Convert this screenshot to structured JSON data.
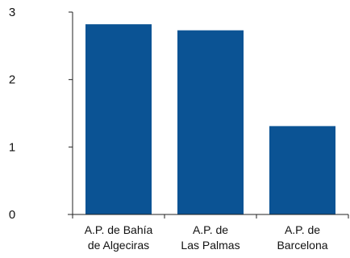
{
  "chart_data": {
    "type": "bar",
    "categories": [
      [
        "A.P. de Bahía",
        "de Algeciras"
      ],
      [
        "A.P. de",
        "Las Palmas"
      ],
      [
        "A.P. de",
        "Barcelona"
      ]
    ],
    "values": [
      2.82,
      2.73,
      1.31
    ],
    "title": "",
    "xlabel": "",
    "ylabel": "",
    "ylim": [
      0,
      3
    ],
    "yticks": [
      "0",
      "1",
      "2",
      "3"
    ],
    "grid": false,
    "bar_color": "#0b5394",
    "axis_color": "#222222"
  }
}
